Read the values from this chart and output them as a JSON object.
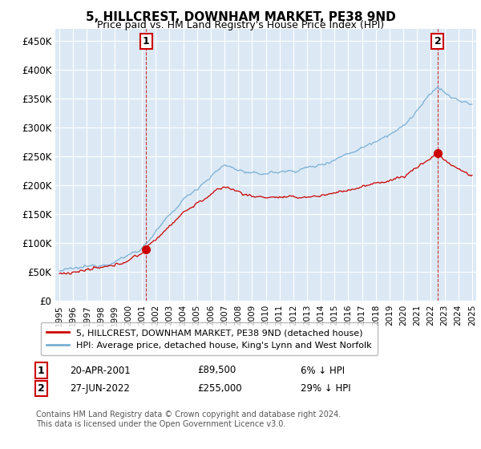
{
  "title": "5, HILLCREST, DOWNHAM MARKET, PE38 9ND",
  "subtitle": "Price paid vs. HM Land Registry's House Price Index (HPI)",
  "ylabel_ticks": [
    "£0",
    "£50K",
    "£100K",
    "£150K",
    "£200K",
    "£250K",
    "£300K",
    "£350K",
    "£400K",
    "£450K"
  ],
  "ytick_values": [
    0,
    50000,
    100000,
    150000,
    200000,
    250000,
    300000,
    350000,
    400000,
    450000
  ],
  "ylim": [
    0,
    470000
  ],
  "xlim_start": 1994.7,
  "xlim_end": 2025.3,
  "legend_line1": "5, HILLCREST, DOWNHAM MARKET, PE38 9ND (detached house)",
  "legend_line2": "HPI: Average price, detached house, King's Lynn and West Norfolk",
  "annotation1_label": "1",
  "annotation1_date": "20-APR-2001",
  "annotation1_price": "£89,500",
  "annotation1_hpi": "6% ↓ HPI",
  "annotation2_label": "2",
  "annotation2_date": "27-JUN-2022",
  "annotation2_price": "£255,000",
  "annotation2_hpi": "29% ↓ HPI",
  "footer": "Contains HM Land Registry data © Crown copyright and database right 2024.\nThis data is licensed under the Open Government Licence v3.0.",
  "red_color": "#cc0000",
  "blue_color": "#7aafd4",
  "chart_bg_color": "#dce9f5",
  "annotation_box_color": "#cc0000",
  "sale1_x": 2001.3,
  "sale1_y": 89500,
  "sale2_x": 2022.5,
  "sale2_y": 255000,
  "background_color": "#ffffff",
  "grid_color": "#ffffff"
}
